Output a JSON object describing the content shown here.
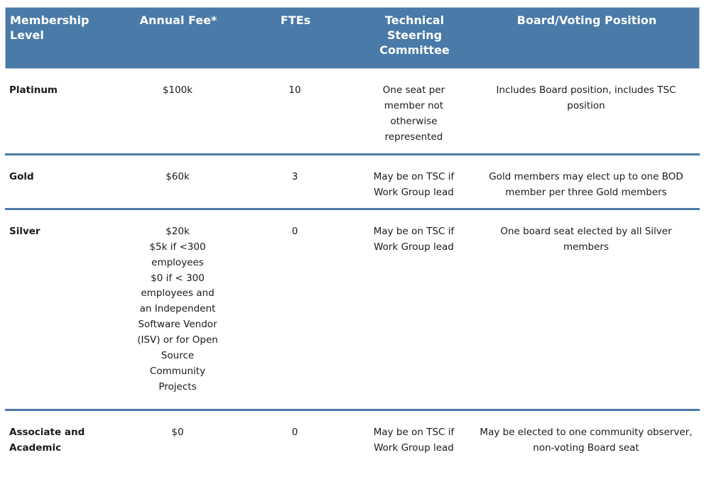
{
  "table": {
    "colors": {
      "header_bg": "#4a7aa8",
      "header_text": "#ffffff",
      "divider": "#4a7aa8",
      "body_text": "#1a1a1a",
      "header_rim": "#b6c8d9"
    },
    "header": {
      "columns": [
        {
          "label": "Membership Level"
        },
        {
          "label": "Annual Fee*"
        },
        {
          "label": "FTEs"
        },
        {
          "label": "Technical Steering Committee"
        },
        {
          "label": "Board/Voting Position"
        }
      ]
    },
    "rows": [
      {
        "level": "Platinum",
        "fee_lines": [
          "$100k"
        ],
        "ftes": "10",
        "tsc": "One seat per member not otherwise represented",
        "board": "Includes Board position, includes TSC position"
      },
      {
        "level": "Gold",
        "fee_lines": [
          "$60k"
        ],
        "ftes": "3",
        "tsc": "May be on TSC if Work Group lead",
        "board": "Gold members may elect up to one BOD member per three Gold members"
      },
      {
        "level": "Silver",
        "fee_lines": [
          "$20k",
          "$5k if <300 employees",
          "$0 if < 300 employees and an Independent Software Vendor (ISV) or for Open Source Community Projects"
        ],
        "ftes": "0",
        "tsc": "May be on TSC if Work Group lead",
        "board": "One board seat elected by all Silver members"
      },
      {
        "level": "Associate and Academic",
        "fee_lines": [
          "$0"
        ],
        "ftes": "0",
        "tsc": "May be on TSC if Work Group lead",
        "board": "May be elected to one community observer, non-voting Board seat"
      }
    ]
  }
}
